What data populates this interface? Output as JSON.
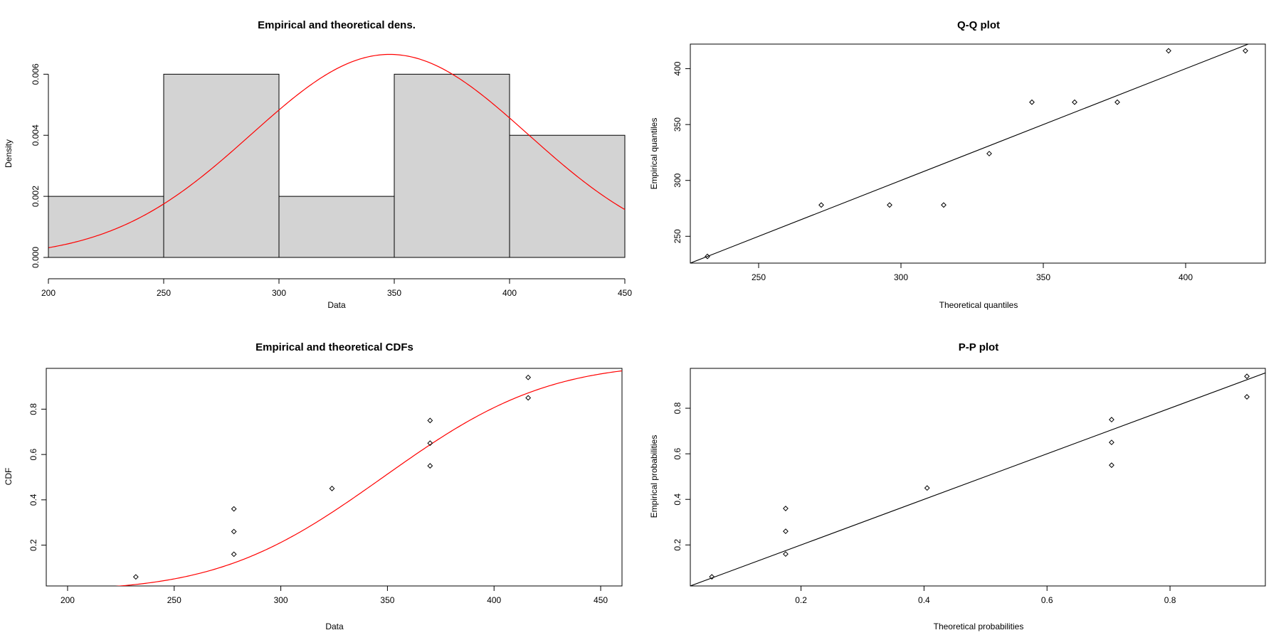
{
  "chart_data": [
    {
      "type": "bar",
      "panel": "density",
      "title": "Empirical and theoretical dens.",
      "xlabel": "Data",
      "ylabel": "Density",
      "xlim": [
        200,
        450
      ],
      "ylim": [
        0,
        0.0068
      ],
      "xticks": [
        "200",
        "250",
        "300",
        "350",
        "400",
        "450"
      ],
      "yticks": [
        "0.000",
        "0.002",
        "0.004",
        "0.006"
      ],
      "bins": [
        {
          "from": 200,
          "to": 250,
          "density": 0.002
        },
        {
          "from": 250,
          "to": 300,
          "density": 0.006
        },
        {
          "from": 300,
          "to": 350,
          "density": 0.002
        },
        {
          "from": 350,
          "to": 400,
          "density": 0.006
        },
        {
          "from": 400,
          "to": 450,
          "density": 0.004
        }
      ],
      "theoretical_curve": {
        "distribution": "normal",
        "mean": 348,
        "sd": 60,
        "color": "#ff0000"
      },
      "bar_fill": "#d3d3d3",
      "grid": false
    },
    {
      "type": "scatter",
      "panel": "qq",
      "title": "Q-Q plot",
      "xlabel": "Theoretical quantiles",
      "ylabel": "Empirical quantiles",
      "xlim": [
        226,
        428
      ],
      "ylim": [
        226,
        422
      ],
      "xticks": [
        "250",
        "300",
        "350",
        "400"
      ],
      "yticks": [
        "250",
        "300",
        "350",
        "400"
      ],
      "points": [
        {
          "x": 232,
          "y": 232
        },
        {
          "x": 272,
          "y": 278
        },
        {
          "x": 296,
          "y": 278
        },
        {
          "x": 315,
          "y": 278
        },
        {
          "x": 331,
          "y": 324
        },
        {
          "x": 346,
          "y": 370
        },
        {
          "x": 361,
          "y": 370
        },
        {
          "x": 376,
          "y": 370
        },
        {
          "x": 394,
          "y": 416
        },
        {
          "x": 421,
          "y": 416
        }
      ],
      "reference_line": {
        "intercept": 0,
        "slope": 1,
        "color": "#000000"
      },
      "grid": false
    },
    {
      "type": "scatter",
      "panel": "cdf",
      "title": "Empirical and theoretical CDFs",
      "xlabel": "Data",
      "ylabel": "CDF",
      "xlim": [
        190,
        460
      ],
      "ylim": [
        0.02,
        0.98
      ],
      "xticks": [
        "200",
        "250",
        "300",
        "350",
        "400",
        "450"
      ],
      "yticks": [
        "0.2",
        "0.4",
        "0.6",
        "0.8"
      ],
      "points": [
        {
          "x": 232,
          "y": 0.06
        },
        {
          "x": 278,
          "y": 0.16
        },
        {
          "x": 278,
          "y": 0.26
        },
        {
          "x": 278,
          "y": 0.36
        },
        {
          "x": 324,
          "y": 0.45
        },
        {
          "x": 370,
          "y": 0.55
        },
        {
          "x": 370,
          "y": 0.65
        },
        {
          "x": 370,
          "y": 0.75
        },
        {
          "x": 416,
          "y": 0.85
        },
        {
          "x": 416,
          "y": 0.94
        }
      ],
      "theoretical_curve": {
        "distribution": "normal",
        "mean": 348,
        "sd": 60,
        "color": "#ff0000"
      },
      "grid": false
    },
    {
      "type": "scatter",
      "panel": "pp",
      "title": "P-P plot",
      "xlabel": "Theoretical probabilities",
      "ylabel": "Empirical probabilities",
      "xlim": [
        0.02,
        0.955
      ],
      "ylim": [
        0.02,
        0.975
      ],
      "xticks": [
        "0.2",
        "0.4",
        "0.6",
        "0.8"
      ],
      "yticks": [
        "0.2",
        "0.4",
        "0.6",
        "0.8"
      ],
      "points": [
        {
          "x": 0.055,
          "y": 0.06
        },
        {
          "x": 0.175,
          "y": 0.16
        },
        {
          "x": 0.175,
          "y": 0.26
        },
        {
          "x": 0.175,
          "y": 0.36
        },
        {
          "x": 0.405,
          "y": 0.45
        },
        {
          "x": 0.705,
          "y": 0.55
        },
        {
          "x": 0.705,
          "y": 0.65
        },
        {
          "x": 0.705,
          "y": 0.75
        },
        {
          "x": 0.925,
          "y": 0.85
        },
        {
          "x": 0.925,
          "y": 0.94
        }
      ],
      "reference_line": {
        "intercept": 0,
        "slope": 1,
        "color": "#000000"
      },
      "grid": false
    }
  ]
}
